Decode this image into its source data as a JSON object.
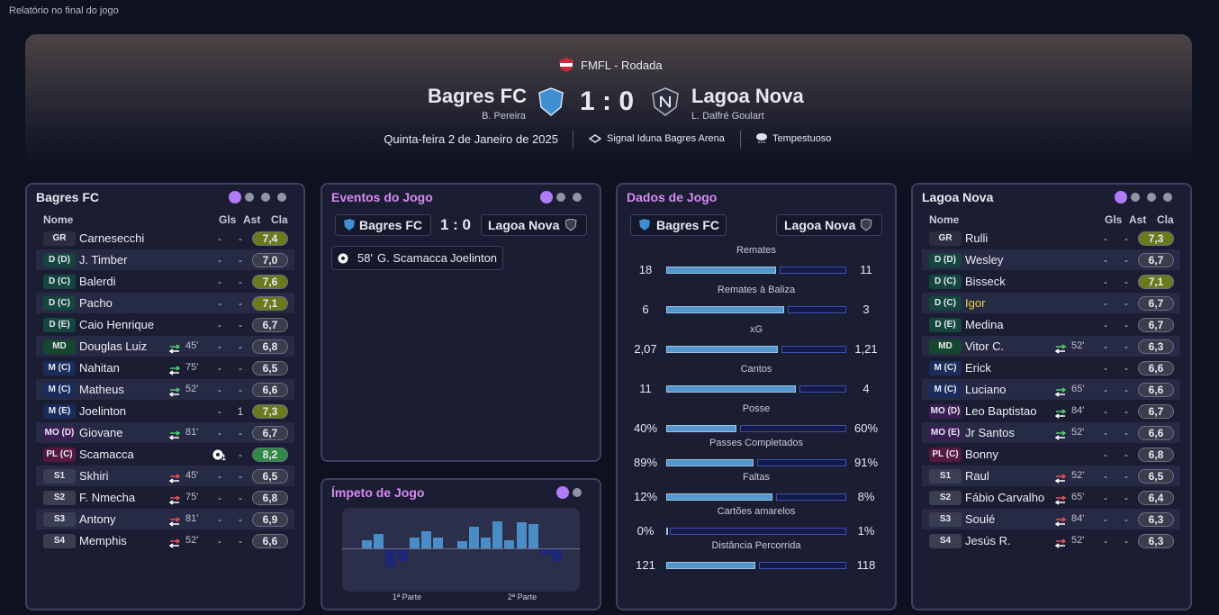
{
  "header": {
    "page_title": "Relatório no final do jogo",
    "competition": "FMFL - Rodada",
    "home_team": "Bagres FC",
    "home_coach": "B. Pereira",
    "score": "1 : 0",
    "away_team": "Lagoa Nova",
    "away_coach": "L. Dalfré Goulart",
    "date": "Quinta-feira 2 de Janeiro de 2025",
    "stadium": "Signal Iduna Bagres Arena",
    "weather": "Tempestuoso"
  },
  "home_lineup": {
    "title": "Bagres FC",
    "columns": [
      "Nome",
      "Gls",
      "Ast",
      "Cla"
    ],
    "players": [
      {
        "pos": "GR",
        "name": "Carnesecchi",
        "gls": "-",
        "ast": "-",
        "rating": "7,4",
        "rating_color": "#6b7a1e"
      },
      {
        "pos": "D (D)",
        "name": "J. Timber",
        "gls": "-",
        "ast": "-",
        "rating": "7,0",
        "rating_color": "#3a3d4c"
      },
      {
        "pos": "D (C)",
        "name": "Balerdi",
        "gls": "-",
        "ast": "-",
        "rating": "7,6",
        "rating_color": "#6b7a1e"
      },
      {
        "pos": "D (C)",
        "name": "Pacho",
        "gls": "-",
        "ast": "-",
        "rating": "7,1",
        "rating_color": "#6b7a1e"
      },
      {
        "pos": "D (E)",
        "name": "Caio Henrique",
        "gls": "-",
        "ast": "-",
        "rating": "6,7",
        "rating_color": "#3a3d4c"
      },
      {
        "pos": "MD",
        "name": "Douglas Luiz",
        "sub_minute": "45'",
        "sub_type": "out",
        "gls": "-",
        "ast": "-",
        "rating": "6,8",
        "rating_color": "#3a3d4c"
      },
      {
        "pos": "M (C)",
        "name": "Nahitan",
        "sub_minute": "75'",
        "sub_type": "out",
        "gls": "-",
        "ast": "-",
        "rating": "6,5",
        "rating_color": "#3a3d4c"
      },
      {
        "pos": "M (C)",
        "name": "Matheus",
        "sub_minute": "52'",
        "sub_type": "out",
        "gls": "-",
        "ast": "-",
        "rating": "6,6",
        "rating_color": "#3a3d4c"
      },
      {
        "pos": "M (E)",
        "name": "Joelinton",
        "gls": "-",
        "ast": "1",
        "rating": "7,3",
        "rating_color": "#6b7a1e"
      },
      {
        "pos": "MO (D)",
        "name": "Giovane",
        "sub_minute": "81'",
        "sub_type": "out",
        "gls": "-",
        "ast": "-",
        "rating": "6,7",
        "rating_color": "#3a3d4c"
      },
      {
        "pos": "PL (C)",
        "name": "Scamacca",
        "gls": "1",
        "goal_icon": true,
        "ast": "-",
        "rating": "8,2",
        "rating_color": "#2f8a45"
      },
      {
        "pos": "S1",
        "name": "Skhiri",
        "sub_minute": "45'",
        "sub_type": "in",
        "gls": "-",
        "ast": "-",
        "rating": "6,5",
        "rating_color": "#3a3d4c"
      },
      {
        "pos": "S2",
        "name": "F. Nmecha",
        "sub_minute": "75'",
        "sub_type": "in",
        "gls": "-",
        "ast": "-",
        "rating": "6,8",
        "rating_color": "#3a3d4c"
      },
      {
        "pos": "S3",
        "name": "Antony",
        "sub_minute": "81'",
        "sub_type": "in",
        "gls": "-",
        "ast": "-",
        "rating": "6,9",
        "rating_color": "#3a3d4c"
      },
      {
        "pos": "S4",
        "name": "Memphis",
        "sub_minute": "52'",
        "sub_type": "in",
        "gls": "-",
        "ast": "-",
        "rating": "6,6",
        "rating_color": "#3a3d4c"
      }
    ]
  },
  "away_lineup": {
    "title": "Lagoa Nova",
    "columns": [
      "Nome",
      "Gls",
      "Ast",
      "Cla"
    ],
    "players": [
      {
        "pos": "GR",
        "name": "Rulli",
        "gls": "-",
        "ast": "-",
        "rating": "7,3",
        "rating_color": "#6b7a1e"
      },
      {
        "pos": "D (D)",
        "name": "Wesley",
        "gls": "-",
        "ast": "-",
        "rating": "6,7",
        "rating_color": "#3a3d4c"
      },
      {
        "pos": "D (C)",
        "name": "Bisseck",
        "gls": "-",
        "ast": "-",
        "rating": "7,1",
        "rating_color": "#6b7a1e"
      },
      {
        "pos": "D (C)",
        "name": "Igor",
        "name_color": "#e6d646",
        "gls": "-",
        "ast": "-",
        "rating": "6,7",
        "rating_color": "#3a3d4c"
      },
      {
        "pos": "D (E)",
        "name": "Medina",
        "gls": "-",
        "ast": "-",
        "rating": "6,7",
        "rating_color": "#3a3d4c"
      },
      {
        "pos": "MD",
        "name": "Vitor C.",
        "sub_minute": "52'",
        "sub_type": "out",
        "gls": "-",
        "ast": "-",
        "rating": "6,3",
        "rating_color": "#3a3d4c"
      },
      {
        "pos": "M (C)",
        "name": "Erick",
        "gls": "-",
        "ast": "-",
        "rating": "6,6",
        "rating_color": "#3a3d4c"
      },
      {
        "pos": "M (C)",
        "name": "Luciano",
        "sub_minute": "65'",
        "sub_type": "out",
        "gls": "-",
        "ast": "-",
        "rating": "6,6",
        "rating_color": "#3a3d4c"
      },
      {
        "pos": "MO (D)",
        "name": "Leo Baptistao",
        "sub_minute": "84'",
        "sub_type": "out",
        "gls": "-",
        "ast": "-",
        "rating": "6,7",
        "rating_color": "#3a3d4c"
      },
      {
        "pos": "MO (E)",
        "name": "Jr Santos",
        "sub_minute": "52'",
        "sub_type": "out",
        "gls": "-",
        "ast": "-",
        "rating": "6,6",
        "rating_color": "#3a3d4c"
      },
      {
        "pos": "PL (C)",
        "name": "Bonny",
        "gls": "-",
        "ast": "-",
        "rating": "6,8",
        "rating_color": "#3a3d4c"
      },
      {
        "pos": "S1",
        "name": "Raul",
        "sub_minute": "52'",
        "sub_type": "in",
        "gls": "-",
        "ast": "-",
        "rating": "6,5",
        "rating_color": "#3a3d4c"
      },
      {
        "pos": "S2",
        "name": "Fábio Carvalho",
        "sub_minute": "65'",
        "sub_type": "in",
        "gls": "-",
        "ast": "-",
        "rating": "6,4",
        "rating_color": "#3a3d4c"
      },
      {
        "pos": "S3",
        "name": "Soulé",
        "sub_minute": "84'",
        "sub_type": "in",
        "gls": "-",
        "ast": "-",
        "rating": "6,3",
        "rating_color": "#3a3d4c"
      },
      {
        "pos": "S4",
        "name": "Jesús R.",
        "sub_minute": "52'",
        "sub_type": "in",
        "gls": "-",
        "ast": "-",
        "rating": "6,3",
        "rating_color": "#3a3d4c"
      }
    ]
  },
  "events": {
    "title": "Eventos do Jogo",
    "home_team": "Bagres FC",
    "score": "1 : 0",
    "away_team": "Lagoa Nova",
    "items": [
      {
        "minute": "58'",
        "scorer": "G. Scamacca",
        "assist": "Joelinton"
      }
    ]
  },
  "stats": {
    "title": "Dados de Jogo",
    "home_team": "Bagres FC",
    "away_team": "Lagoa Nova",
    "home_color": "#5596cf",
    "away_color": "#141a4a",
    "rows": [
      {
        "label": "Remates",
        "home": 18,
        "away": 11
      },
      {
        "label": "Remates à Baliza",
        "home": 6,
        "away": 3
      },
      {
        "label": "xG",
        "home": 2.07,
        "away": 1.21,
        "home_label": "2,07",
        "away_label": "1,21"
      },
      {
        "label": "Cantos",
        "home": 11,
        "away": 4
      },
      {
        "label": "Posse",
        "home": 40,
        "away": 60,
        "home_label": "40%",
        "away_label": "60%"
      },
      {
        "label": "Passes Completados",
        "home": 89,
        "away": 91,
        "home_label": "89%",
        "away_label": "91%"
      },
      {
        "label": "Faltas",
        "home": 12,
        "away": 8,
        "home_label": "12%",
        "away_label": "8%"
      },
      {
        "label": "Cartões amarelos",
        "home": 0,
        "away": 1,
        "home_label": "0%",
        "away_label": "1%"
      },
      {
        "label": "Distância Percorrida",
        "home": 121,
        "away": 118
      }
    ]
  },
  "momentum": {
    "title": "Ímpeto de Jogo",
    "first_half": "1ª Parte",
    "second_half": "2ª Parte",
    "positive_color": "#4a8cc6",
    "negative_color": "#1c2778",
    "values": [
      9,
      16,
      -20,
      -13,
      12,
      19,
      12,
      null,
      8,
      24,
      12,
      30,
      9,
      29,
      27,
      -6,
      -13
    ]
  }
}
